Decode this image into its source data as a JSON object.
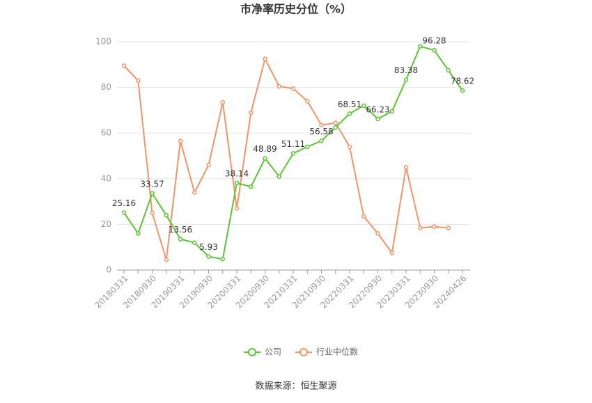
{
  "chart_data": {
    "type": "line",
    "title": "市净率历史分位（%）",
    "categories": [
      "20180331",
      null,
      "20180930",
      null,
      "20190331",
      null,
      "20190930",
      null,
      "20200331",
      null,
      "20200930",
      null,
      "20210331",
      null,
      "20210930",
      null,
      "20220331",
      null,
      "20220930",
      null,
      "20230331",
      null,
      "20230930",
      null,
      "20240426"
    ],
    "series": [
      {
        "name": "公司",
        "color": "#5cc434",
        "values": [
          25.16,
          16,
          33.57,
          24,
          13.56,
          12,
          5.93,
          4.8,
          38.14,
          36.5,
          48.89,
          41,
          51.11,
          54,
          56.58,
          62.5,
          68.51,
          72,
          66.23,
          69.5,
          83.38,
          98,
          96.28,
          87.5,
          78.62
        ]
      },
      {
        "name": "行业中位数",
        "color": "#f0956a",
        "values": [
          89.5,
          83,
          25,
          4.5,
          56.5,
          34,
          46,
          73.5,
          27,
          69,
          92.5,
          80.5,
          79.5,
          74,
          63.5,
          64.5,
          54,
          23.5,
          16,
          7.5,
          45,
          18.5,
          19,
          18.5,
          null
        ]
      }
    ],
    "ylim": [
      0,
      100
    ],
    "yticks": [
      0,
      20,
      40,
      60,
      80,
      100
    ],
    "grid": true,
    "source": "数据来源：恒生聚源"
  }
}
